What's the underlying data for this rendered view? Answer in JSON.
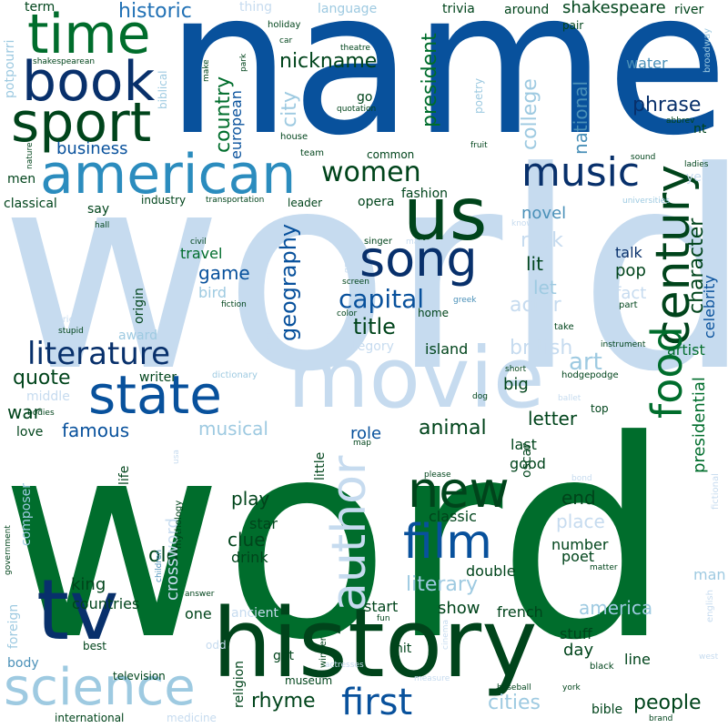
{
  "palette": {
    "navy": "#08306b",
    "deep_blue": "#08519c",
    "blue": "#2171b5",
    "teal": "#2b8cbe",
    "steel": "#4a90b8",
    "light_blue": "#9ecae1",
    "pale_blue": "#c6dbef",
    "forest": "#00441b",
    "green": "#006d2c",
    "bright_green": "#238b45"
  },
  "words": [
    {
      "text": "world",
      "size": 300,
      "color": "pale_blue"
    },
    {
      "text": "word",
      "size": 300,
      "color": "green"
    },
    {
      "text": "name",
      "size": 218,
      "color": "deep_blue"
    },
    {
      "text": "history",
      "size": 104,
      "color": "forest"
    },
    {
      "text": "movie",
      "size": 92,
      "color": "pale_blue"
    },
    {
      "text": "tv",
      "size": 92,
      "color": "navy"
    },
    {
      "text": "time",
      "size": 60,
      "color": "green"
    },
    {
      "text": "book",
      "size": 60,
      "color": "navy"
    },
    {
      "text": "sport",
      "size": 60,
      "color": "forest"
    },
    {
      "text": "american",
      "size": 60,
      "color": "teal"
    },
    {
      "text": "us",
      "size": 80,
      "color": "forest"
    },
    {
      "text": "song",
      "size": 54,
      "color": "navy"
    },
    {
      "text": "state",
      "size": 58,
      "color": "deep_blue"
    },
    {
      "text": "science",
      "size": 56,
      "color": "light_blue"
    },
    {
      "text": "music",
      "size": 44,
      "color": "navy"
    },
    {
      "text": "new",
      "size": 54,
      "color": "forest"
    },
    {
      "text": "film",
      "size": 52,
      "color": "deep_blue"
    },
    {
      "text": "century",
      "size": 52,
      "color": "forest"
    },
    {
      "text": "author",
      "size": 52,
      "color": "pale_blue"
    },
    {
      "text": "first",
      "size": 40,
      "color": "deep_blue"
    },
    {
      "text": "food",
      "size": 46,
      "color": "green"
    },
    {
      "text": "literature",
      "size": 34,
      "color": "navy"
    },
    {
      "text": "women",
      "size": 30,
      "color": "forest"
    },
    {
      "text": "capital",
      "size": 28,
      "color": "deep_blue"
    },
    {
      "text": "geography",
      "size": 24,
      "color": "deep_blue"
    },
    {
      "text": "title",
      "size": 24,
      "color": "forest"
    },
    {
      "text": "historic",
      "size": 22,
      "color": "blue"
    },
    {
      "text": "nickname",
      "size": 22,
      "color": "forest"
    },
    {
      "text": "country",
      "size": 22,
      "color": "green"
    },
    {
      "text": "city",
      "size": 22,
      "color": "light_blue"
    },
    {
      "text": "president",
      "size": 22,
      "color": "green"
    },
    {
      "text": "phrase",
      "size": 22,
      "color": "navy"
    },
    {
      "text": "college",
      "size": 22,
      "color": "light_blue"
    },
    {
      "text": "national",
      "size": 20,
      "color": "steel"
    },
    {
      "text": "shakespeare",
      "size": 18,
      "color": "forest"
    },
    {
      "text": "business",
      "size": 18,
      "color": "deep_blue"
    },
    {
      "text": "european",
      "size": 16,
      "color": "deep_blue"
    },
    {
      "text": "water",
      "size": 16,
      "color": "steel"
    },
    {
      "text": "character",
      "size": 22,
      "color": "forest"
    },
    {
      "text": "celebrity",
      "size": 16,
      "color": "deep_blue"
    },
    {
      "text": "fact",
      "size": 18,
      "color": "pale_blue"
    },
    {
      "text": "novel",
      "size": 18,
      "color": "steel"
    },
    {
      "text": "rock",
      "size": 22,
      "color": "pale_blue"
    },
    {
      "text": "lit",
      "size": 20,
      "color": "forest"
    },
    {
      "text": "let",
      "size": 20,
      "color": "light_blue"
    },
    {
      "text": "pop",
      "size": 18,
      "color": "forest"
    },
    {
      "text": "talk",
      "size": 16,
      "color": "navy"
    },
    {
      "text": "actor",
      "size": 22,
      "color": "pale_blue"
    },
    {
      "text": "game",
      "size": 20,
      "color": "deep_blue"
    },
    {
      "text": "travel",
      "size": 16,
      "color": "green"
    },
    {
      "text": "bird",
      "size": 16,
      "color": "light_blue"
    },
    {
      "text": "quote",
      "size": 22,
      "color": "forest"
    },
    {
      "text": "famous",
      "size": 20,
      "color": "deep_blue"
    },
    {
      "text": "war",
      "size": 20,
      "color": "forest"
    },
    {
      "text": "musical",
      "size": 20,
      "color": "light_blue"
    },
    {
      "text": "island",
      "size": 16,
      "color": "forest"
    },
    {
      "text": "british",
      "size": 22,
      "color": "pale_blue"
    },
    {
      "text": "art",
      "size": 26,
      "color": "light_blue"
    },
    {
      "text": "animal",
      "size": 22,
      "color": "forest"
    },
    {
      "text": "letter",
      "size": 20,
      "color": "forest"
    },
    {
      "text": "role",
      "size": 18,
      "color": "deep_blue"
    },
    {
      "text": "big",
      "size": 18,
      "color": "forest"
    },
    {
      "text": "artist",
      "size": 16,
      "color": "green"
    },
    {
      "text": "play",
      "size": 20,
      "color": "forest"
    },
    {
      "text": "clue",
      "size": 20,
      "color": "forest"
    },
    {
      "text": "end",
      "size": 20,
      "color": "forest"
    },
    {
      "text": "place",
      "size": 20,
      "color": "pale_blue"
    },
    {
      "text": "classic",
      "size": 16,
      "color": "forest"
    },
    {
      "text": "good",
      "size": 16,
      "color": "forest"
    },
    {
      "text": "last",
      "size": 16,
      "color": "forest"
    },
    {
      "text": "oscar",
      "size": 14,
      "color": "forest"
    },
    {
      "text": "presidential",
      "size": 18,
      "color": "green"
    },
    {
      "text": "literary",
      "size": 22,
      "color": "light_blue"
    },
    {
      "text": "number",
      "size": 16,
      "color": "forest"
    },
    {
      "text": "poet",
      "size": 16,
      "color": "forest"
    },
    {
      "text": "double",
      "size": 16,
      "color": "forest"
    },
    {
      "text": "america",
      "size": 20,
      "color": "light_blue"
    },
    {
      "text": "show",
      "size": 18,
      "color": "forest"
    },
    {
      "text": "start",
      "size": 16,
      "color": "forest"
    },
    {
      "text": "french",
      "size": 16,
      "color": "forest"
    },
    {
      "text": "old",
      "size": 22,
      "color": "forest"
    },
    {
      "text": "king",
      "size": 18,
      "color": "forest"
    },
    {
      "text": "countries",
      "size": 16,
      "color": "forest"
    },
    {
      "text": "one",
      "size": 16,
      "color": "forest"
    },
    {
      "text": "star",
      "size": 16,
      "color": "forest"
    },
    {
      "text": "drink",
      "size": 16,
      "color": "forest"
    },
    {
      "text": "day",
      "size": 18,
      "color": "forest"
    },
    {
      "text": "stuff",
      "size": 16,
      "color": "forest"
    },
    {
      "text": "line",
      "size": 16,
      "color": "forest"
    },
    {
      "text": "people",
      "size": 22,
      "color": "forest"
    },
    {
      "text": "cities",
      "size": 22,
      "color": "light_blue"
    },
    {
      "text": "rhyme",
      "size": 22,
      "color": "forest"
    },
    {
      "text": "bible",
      "size": 14,
      "color": "forest"
    },
    {
      "text": "man",
      "size": 16,
      "color": "light_blue"
    },
    {
      "text": "origin",
      "size": 14,
      "color": "forest"
    },
    {
      "text": "award",
      "size": 14,
      "color": "light_blue"
    },
    {
      "text": "writer",
      "size": 14,
      "color": "forest"
    },
    {
      "text": "middle",
      "size": 14,
      "color": "pale_blue"
    },
    {
      "text": "love",
      "size": 14,
      "color": "forest"
    },
    {
      "text": "life",
      "size": 14,
      "color": "forest"
    },
    {
      "text": "little",
      "size": 14,
      "color": "forest"
    },
    {
      "text": "composer",
      "size": 14,
      "color": "light_blue"
    },
    {
      "text": "crossword",
      "size": 18,
      "color": "pale_blue"
    },
    {
      "text": "foreign",
      "size": 14,
      "color": "light_blue"
    },
    {
      "text": "body",
      "size": 14,
      "color": "steel"
    },
    {
      "text": "best",
      "size": 12,
      "color": "forest"
    },
    {
      "text": "television",
      "size": 12,
      "color": "forest"
    },
    {
      "text": "museum",
      "size": 12,
      "color": "forest"
    },
    {
      "text": "got",
      "size": 14,
      "color": "forest"
    },
    {
      "text": "hit",
      "size": 14,
      "color": "forest"
    },
    {
      "text": "religion",
      "size": 14,
      "color": "forest"
    },
    {
      "text": "international",
      "size": 12,
      "color": "forest"
    },
    {
      "text": "medicine",
      "size": 12,
      "color": "pale_blue"
    },
    {
      "text": "odd",
      "size": 12,
      "color": "pale_blue"
    },
    {
      "text": "ancient",
      "size": 14,
      "color": "pale_blue"
    },
    {
      "text": "category",
      "size": 14,
      "color": "pale_blue"
    },
    {
      "text": "home",
      "size": 12,
      "color": "forest"
    },
    {
      "text": "take",
      "size": 10,
      "color": "forest"
    },
    {
      "text": "part",
      "size": 10,
      "color": "forest"
    },
    {
      "text": "short",
      "size": 9,
      "color": "forest"
    },
    {
      "text": "top",
      "size": 12,
      "color": "forest"
    },
    {
      "text": "year",
      "size": 14,
      "color": "pale_blue"
    },
    {
      "text": "leader",
      "size": 12,
      "color": "forest"
    },
    {
      "text": "opera",
      "size": 14,
      "color": "forest"
    },
    {
      "text": "fashion",
      "size": 14,
      "color": "forest"
    },
    {
      "text": "industry",
      "size": 12,
      "color": "forest"
    },
    {
      "text": "classical",
      "size": 14,
      "color": "forest"
    },
    {
      "text": "say",
      "size": 14,
      "color": "forest"
    },
    {
      "text": "men",
      "size": 14,
      "color": "forest"
    },
    {
      "text": "team",
      "size": 10,
      "color": "forest"
    },
    {
      "text": "common",
      "size": 12,
      "color": "forest"
    },
    {
      "text": "go",
      "size": 14,
      "color": "forest"
    },
    {
      "text": "house",
      "size": 10,
      "color": "forest"
    },
    {
      "text": "around",
      "size": 14,
      "color": "forest"
    },
    {
      "text": "trivia",
      "size": 14,
      "color": "forest"
    },
    {
      "text": "term",
      "size": 14,
      "color": "forest"
    },
    {
      "text": "thing",
      "size": 14,
      "color": "pale_blue"
    },
    {
      "text": "language",
      "size": 14,
      "color": "light_blue"
    },
    {
      "text": "potpourri",
      "size": 14,
      "color": "light_blue"
    },
    {
      "text": "river",
      "size": 14,
      "color": "forest"
    },
    {
      "text": "pair",
      "size": 12,
      "color": "forest"
    },
    {
      "text": "holiday",
      "size": 10,
      "color": "forest"
    },
    {
      "text": "theatre",
      "size": 9,
      "color": "forest"
    },
    {
      "text": "car",
      "size": 9,
      "color": "forest"
    },
    {
      "text": "quotation",
      "size": 9,
      "color": "forest"
    },
    {
      "text": "broadway",
      "size": 10,
      "color": "light_blue"
    },
    {
      "text": "nt",
      "size": 14,
      "color": "forest"
    },
    {
      "text": "abbrev",
      "size": 9,
      "color": "forest"
    },
    {
      "text": "sound",
      "size": 9,
      "color": "forest"
    },
    {
      "text": "ladies",
      "size": 9,
      "color": "forest"
    },
    {
      "text": "fruit",
      "size": 9,
      "color": "forest"
    },
    {
      "text": "poetry",
      "size": 12,
      "color": "light_blue"
    },
    {
      "text": "biblical",
      "size": 12,
      "color": "light_blue"
    },
    {
      "text": "shakespearean",
      "size": 9,
      "color": "forest"
    },
    {
      "text": "nature",
      "size": 9,
      "color": "forest"
    },
    {
      "text": "make",
      "size": 9,
      "color": "forest"
    },
    {
      "text": "park",
      "size": 9,
      "color": "forest"
    },
    {
      "text": "transportation",
      "size": 9,
      "color": "forest"
    },
    {
      "text": "universities",
      "size": 9,
      "color": "light_blue"
    },
    {
      "text": "hall",
      "size": 9,
      "color": "forest"
    },
    {
      "text": "civil",
      "size": 9,
      "color": "forest"
    },
    {
      "text": "fiction",
      "size": 9,
      "color": "forest"
    },
    {
      "text": "singer",
      "size": 10,
      "color": "forest"
    },
    {
      "text": "magazine",
      "size": 9,
      "color": "pale_blue"
    },
    {
      "text": "know",
      "size": 9,
      "color": "pale_blue"
    },
    {
      "text": "great",
      "size": 9,
      "color": "pale_blue"
    },
    {
      "text": "screen",
      "size": 9,
      "color": "forest"
    },
    {
      "text": "color",
      "size": 9,
      "color": "forest"
    },
    {
      "text": "greek",
      "size": 9,
      "color": "steel"
    },
    {
      "text": "lyric",
      "size": 10,
      "color": "pale_blue"
    },
    {
      "text": "stupid",
      "size": 9,
      "color": "forest"
    },
    {
      "text": "culture",
      "size": 9,
      "color": "pale_blue"
    },
    {
      "text": "dictionary",
      "size": 10,
      "color": "light_blue"
    },
    {
      "text": "instrument",
      "size": 9,
      "color": "forest"
    },
    {
      "text": "hodgepodge",
      "size": 10,
      "color": "forest"
    },
    {
      "text": "ballet",
      "size": 9,
      "color": "pale_blue"
    },
    {
      "text": "dog",
      "size": 9,
      "color": "forest"
    },
    {
      "text": "bodies",
      "size": 9,
      "color": "forest"
    },
    {
      "text": "map",
      "size": 9,
      "color": "forest"
    },
    {
      "text": "usa",
      "size": 9,
      "color": "pale_blue"
    },
    {
      "text": "please",
      "size": 9,
      "color": "forest"
    },
    {
      "text": "bond",
      "size": 9,
      "color": "pale_blue"
    },
    {
      "text": "fictional",
      "size": 10,
      "color": "pale_blue"
    },
    {
      "text": "mythology",
      "size": 10,
      "color": "forest"
    },
    {
      "text": "government",
      "size": 9,
      "color": "forest"
    },
    {
      "text": "children",
      "size": 9,
      "color": "steel"
    },
    {
      "text": "answer",
      "size": 9,
      "color": "forest"
    },
    {
      "text": "fun",
      "size": 9,
      "color": "forest"
    },
    {
      "text": "matter",
      "size": 9,
      "color": "forest"
    },
    {
      "text": "english",
      "size": 10,
      "color": "pale_blue"
    },
    {
      "text": "cinema",
      "size": 9,
      "color": "pale_blue"
    },
    {
      "text": "winner",
      "size": 10,
      "color": "forest"
    },
    {
      "text": "actresses",
      "size": 9,
      "color": "pale_blue"
    },
    {
      "text": "measure",
      "size": 9,
      "color": "pale_blue"
    },
    {
      "text": "black",
      "size": 10,
      "color": "forest"
    },
    {
      "text": "york",
      "size": 9,
      "color": "forest"
    },
    {
      "text": "baseball",
      "size": 9,
      "color": "forest"
    },
    {
      "text": "brand",
      "size": 9,
      "color": "forest"
    },
    {
      "text": "west",
      "size": 9,
      "color": "pale_blue"
    }
  ]
}
